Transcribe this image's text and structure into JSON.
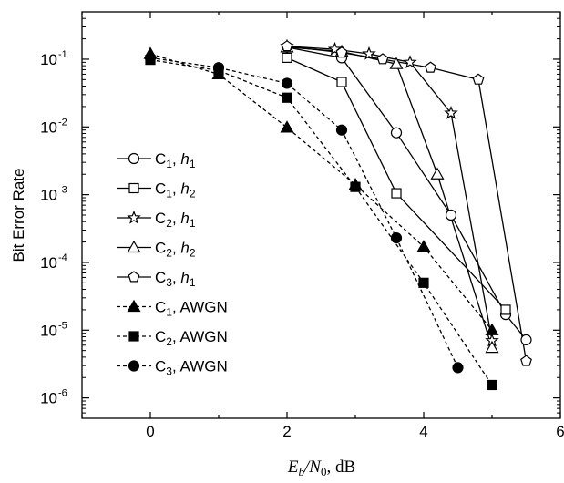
{
  "chart_data": {
    "type": "line",
    "title": "",
    "xlabel": "E_b/N_0, dB",
    "ylabel": "Bit Error Rate",
    "xlim": [
      -1,
      6
    ],
    "ylim": [
      5e-07,
      0.5
    ],
    "yscale": "log",
    "x_ticks": [
      0,
      2,
      4,
      6
    ],
    "y_ticks": [
      1e-06,
      1e-05,
      0.0001,
      0.001,
      0.01,
      0.1
    ],
    "y_tick_labels": [
      {
        "base": "10",
        "exp": "-6"
      },
      {
        "base": "10",
        "exp": "-5"
      },
      {
        "base": "10",
        "exp": "-4"
      },
      {
        "base": "10",
        "exp": "-3"
      },
      {
        "base": "10",
        "exp": "-2"
      },
      {
        "base": "10",
        "exp": "-1"
      }
    ],
    "grid": false,
    "legend_position": "left",
    "series": [
      {
        "name": "C1, h1",
        "legend": {
          "code": "C",
          "code_sub": "1",
          "param": "h",
          "param_sub": "1"
        },
        "marker": "circle-open",
        "dash": "solid",
        "x": [
          2,
          2.8,
          3.6,
          4.4,
          5.2,
          5.5
        ],
        "y": [
          0.15,
          0.105,
          0.0082,
          0.0005,
          1.7e-05,
          7.2e-06
        ]
      },
      {
        "name": "C1, h2",
        "legend": {
          "code": "C",
          "code_sub": "1",
          "param": "h",
          "param_sub": "2"
        },
        "marker": "square-open",
        "dash": "solid",
        "x": [
          2,
          2.8,
          3.6,
          5.2
        ],
        "y": [
          0.105,
          0.046,
          0.00105,
          2e-05
        ]
      },
      {
        "name": "C2, h1",
        "legend": {
          "code": "C",
          "code_sub": "2",
          "param": "h",
          "param_sub": "1"
        },
        "marker": "star-open",
        "dash": "solid",
        "x": [
          2,
          2.7,
          3.2,
          3.8,
          4.4,
          5.0
        ],
        "y": [
          0.155,
          0.14,
          0.12,
          0.09,
          0.016,
          7e-06
        ]
      },
      {
        "name": "C2, h2",
        "legend": {
          "code": "C",
          "code_sub": "2",
          "param": "h",
          "param_sub": "2"
        },
        "marker": "triangle-open",
        "dash": "solid",
        "x": [
          2,
          2.8,
          3.6,
          4.2,
          5.0
        ],
        "y": [
          0.15,
          0.13,
          0.085,
          0.002,
          5.5e-06
        ]
      },
      {
        "name": "C3, h1",
        "legend": {
          "code": "C",
          "code_sub": "3",
          "param": "h",
          "param_sub": "1"
        },
        "marker": "pentagon-open",
        "dash": "solid",
        "x": [
          2,
          2.8,
          3.4,
          4.1,
          4.8,
          5.5
        ],
        "y": [
          0.155,
          0.125,
          0.1,
          0.075,
          0.05,
          3.5e-06
        ]
      },
      {
        "name": "C1, AWGN",
        "legend": {
          "code": "C",
          "code_sub": "1",
          "param": "AWGN",
          "param_sub": ""
        },
        "marker": "triangle-filled",
        "dash": "dashed",
        "x": [
          0,
          1,
          2,
          3,
          4,
          5
        ],
        "y": [
          0.12,
          0.06,
          0.0098,
          0.0014,
          0.00017,
          1e-05
        ]
      },
      {
        "name": "C2, AWGN",
        "legend": {
          "code": "C",
          "code_sub": "2",
          "param": "AWGN",
          "param_sub": ""
        },
        "marker": "square-filled",
        "dash": "dashed",
        "x": [
          0,
          1,
          2,
          3,
          4,
          5
        ],
        "y": [
          0.098,
          0.068,
          0.027,
          0.0013,
          5e-05,
          1.55e-06
        ]
      },
      {
        "name": "C3, AWGN",
        "legend": {
          "code": "C",
          "code_sub": "3",
          "param": "AWGN",
          "param_sub": ""
        },
        "marker": "circle-filled",
        "dash": "dashed",
        "x": [
          0,
          1,
          2,
          2.8,
          3.6,
          4.5
        ],
        "y": [
          0.105,
          0.075,
          0.044,
          0.009,
          0.00023,
          2.8e-06
        ]
      }
    ]
  }
}
